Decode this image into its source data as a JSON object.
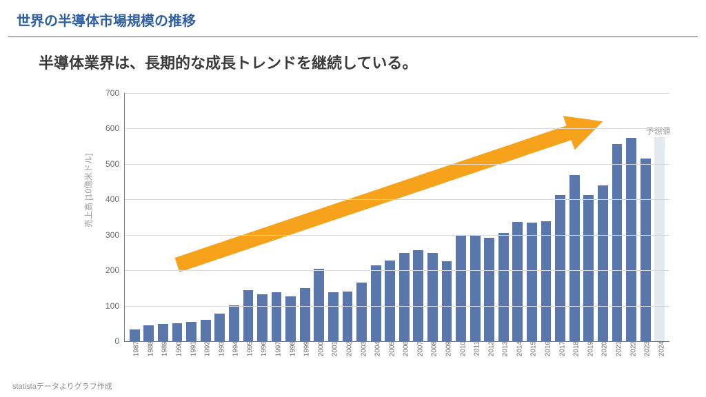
{
  "header": {
    "title": "世界の半導体市場規模の推移",
    "title_color": "#2f5fa3",
    "title_fontsize": 20,
    "rule_color": "#2f5fa3"
  },
  "subtitle": {
    "text": "半導体業界は、長期的な成長トレンドを継続している。",
    "fontsize": 22,
    "color": "#3a3a3a"
  },
  "chart": {
    "type": "bar",
    "y_axis_title": "売上高 [10億米ドル]",
    "y_axis_title_color": "#9a9a9a",
    "y_axis_title_fontsize": 12,
    "ylim_max": 700,
    "ytick_step": 100,
    "ytick_fontsize": 12,
    "ytick_color": "#6b6b6b",
    "grid_color": "#d9d9d9",
    "axis_color": "#7a7a7a",
    "xlabel_fontsize": 10,
    "xlabel_color": "#6b6b6b",
    "bar_color": "#5a77ad",
    "forecast_bar_color": "#e3e9ef",
    "forecast_label": "予想値",
    "forecast_label_color": "#9a9a9a",
    "forecast_label_fontsize": 12,
    "bar_width_ratio": 0.72,
    "background_color": "#ffffff",
    "years": [
      1987,
      1988,
      1989,
      1990,
      1991,
      1992,
      1993,
      1994,
      1995,
      1996,
      1997,
      1998,
      1999,
      2000,
      2001,
      2002,
      2003,
      2004,
      2005,
      2006,
      2007,
      2008,
      2009,
      2010,
      2011,
      2012,
      2013,
      2014,
      2015,
      2016,
      2017,
      2018,
      2019,
      2020,
      2021,
      2022,
      2023,
      2024
    ],
    "values": [
      33,
      45,
      49,
      51,
      55,
      60,
      78,
      102,
      144,
      132,
      138,
      126,
      150,
      204,
      139,
      141,
      166,
      213,
      228,
      248,
      256,
      249,
      226,
      298,
      300,
      292,
      306,
      336,
      335,
      339,
      412,
      469,
      412,
      440,
      556,
      574,
      515,
      576
    ],
    "forecast_index": 37
  },
  "trend_arrow": {
    "color": "#f6a21b",
    "x1_year_index": 3,
    "y1_value": 215,
    "x2_year_index": 33,
    "y2_value": 620,
    "shaft_width": 22,
    "head_len": 52,
    "head_width": 52
  },
  "footer": {
    "text": "statistaデータよりグラフ作成",
    "color": "#8c8c8c",
    "fontsize": 11
  }
}
